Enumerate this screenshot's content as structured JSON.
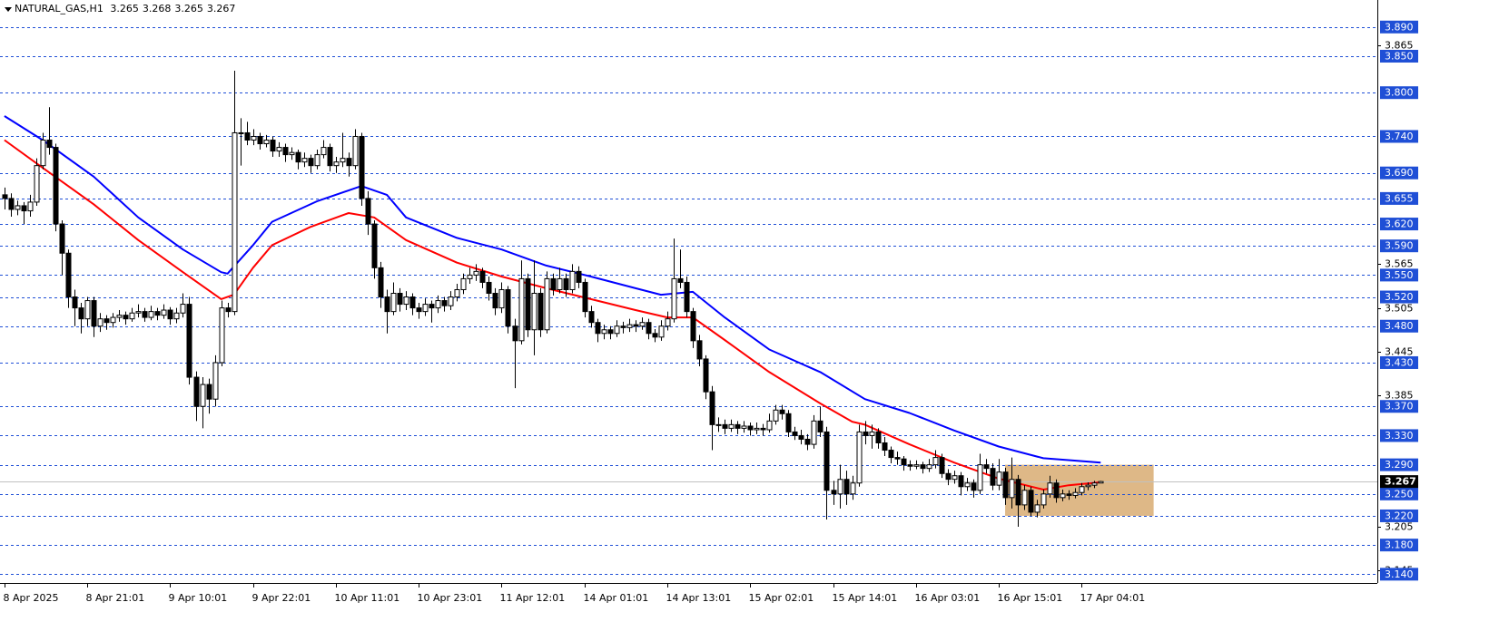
{
  "chart_data": {
    "type": "candlestick",
    "title": "NATURAL_GAS,H1",
    "xlim": [
      -0.7,
      215.4
    ],
    "ylim": [
      3.128,
      3.927
    ],
    "xticks": [
      {
        "value": 0,
        "label": "8 Apr 2025"
      },
      {
        "value": 13,
        "label": "8 Apr 21:01"
      },
      {
        "value": 26,
        "label": "9 Apr 10:01"
      },
      {
        "value": 39,
        "label": "9 Apr 22:01"
      },
      {
        "value": 52,
        "label": "10 Apr 11:01"
      },
      {
        "value": 65,
        "label": "10 Apr 23:01"
      },
      {
        "value": 78,
        "label": "11 Apr 12:01"
      },
      {
        "value": 91,
        "label": "14 Apr 01:01"
      },
      {
        "value": 104,
        "label": "14 Apr 13:01"
      },
      {
        "value": 117,
        "label": "15 Apr 02:01"
      },
      {
        "value": 130,
        "label": "15 Apr 14:01"
      },
      {
        "value": 143,
        "label": "16 Apr 03:01"
      },
      {
        "value": 156,
        "label": "16 Apr 15:01"
      },
      {
        "value": 169,
        "label": "17 Apr 04:01"
      }
    ],
    "yticks": [
      3.865,
      3.565,
      3.505,
      3.445,
      3.385,
      3.205,
      3.145
    ],
    "levels": [
      {
        "value": 3.89,
        "label": "3.890"
      },
      {
        "value": 3.85,
        "label": "3.850"
      },
      {
        "value": 3.8,
        "label": "3.800"
      },
      {
        "value": 3.74,
        "label": "3.740"
      },
      {
        "value": 3.69,
        "label": "3.690"
      },
      {
        "value": 3.655,
        "label": "3.655"
      },
      {
        "value": 3.62,
        "label": "3.620"
      },
      {
        "value": 3.59,
        "label": "3.590"
      },
      {
        "value": 3.55,
        "label": "3.550"
      },
      {
        "value": 3.52,
        "label": "3.520"
      },
      {
        "value": 3.48,
        "label": "3.480"
      },
      {
        "value": 3.43,
        "label": "3.430"
      },
      {
        "value": 3.37,
        "label": "3.370"
      },
      {
        "value": 3.33,
        "label": "3.330"
      },
      {
        "value": 3.29,
        "label": "3.290"
      },
      {
        "value": 3.25,
        "label": "3.250"
      },
      {
        "value": 3.22,
        "label": "3.220"
      },
      {
        "value": 3.18,
        "label": "3.180"
      },
      {
        "value": 3.14,
        "label": "3.140"
      }
    ],
    "level_color": "#1f4fd6",
    "zone": {
      "color": "#deb887",
      "xlim": [
        157,
        180.3
      ],
      "ylim": [
        3.22,
        3.29
      ]
    },
    "candles": [
      [
        3.66,
        3.67,
        3.64,
        3.655
      ],
      [
        3.655,
        3.662,
        3.63,
        3.64
      ],
      [
        3.64,
        3.652,
        3.632,
        3.645
      ],
      [
        3.645,
        3.65,
        3.62,
        3.638
      ],
      [
        3.638,
        3.66,
        3.63,
        3.65
      ],
      [
        3.65,
        3.71,
        3.645,
        3.7
      ],
      [
        3.7,
        3.745,
        3.695,
        3.735
      ],
      [
        3.735,
        3.78,
        3.715,
        3.725
      ],
      [
        3.725,
        3.73,
        3.61,
        3.62
      ],
      [
        3.62,
        3.625,
        3.55,
        3.58
      ],
      [
        3.58,
        3.585,
        3.505,
        3.52
      ],
      [
        3.52,
        3.53,
        3.48,
        3.505
      ],
      [
        3.505,
        3.512,
        3.47,
        3.49
      ],
      [
        3.49,
        3.52,
        3.48,
        3.515
      ],
      [
        3.515,
        3.52,
        3.465,
        3.48
      ],
      [
        3.48,
        3.498,
        3.472,
        3.49
      ],
      [
        3.49,
        3.495,
        3.475,
        3.485
      ],
      [
        3.485,
        3.498,
        3.478,
        3.492
      ],
      [
        3.492,
        3.502,
        3.486,
        3.495
      ],
      [
        3.495,
        3.5,
        3.482,
        3.49
      ],
      [
        3.49,
        3.505,
        3.486,
        3.498
      ],
      [
        3.498,
        3.51,
        3.492,
        3.5
      ],
      [
        3.5,
        3.505,
        3.486,
        3.492
      ],
      [
        3.492,
        3.508,
        3.488,
        3.5
      ],
      [
        3.5,
        3.505,
        3.488,
        3.495
      ],
      [
        3.495,
        3.51,
        3.49,
        3.502
      ],
      [
        3.502,
        3.506,
        3.482,
        3.49
      ],
      [
        3.49,
        3.505,
        3.484,
        3.498
      ],
      [
        3.498,
        3.525,
        3.492,
        3.51
      ],
      [
        3.51,
        3.52,
        3.4,
        3.41
      ],
      [
        3.41,
        3.418,
        3.35,
        3.37
      ],
      [
        3.37,
        3.41,
        3.34,
        3.4
      ],
      [
        3.4,
        3.408,
        3.36,
        3.38
      ],
      [
        3.38,
        3.44,
        3.37,
        3.43
      ],
      [
        3.43,
        3.515,
        3.425,
        3.505
      ],
      [
        3.505,
        3.512,
        3.492,
        3.5
      ],
      [
        3.5,
        3.83,
        3.495,
        3.745
      ],
      [
        3.745,
        3.765,
        3.7,
        3.745
      ],
      [
        3.745,
        3.76,
        3.728,
        3.735
      ],
      [
        3.735,
        3.75,
        3.728,
        3.74
      ],
      [
        3.74,
        3.745,
        3.722,
        3.73
      ],
      [
        3.73,
        3.742,
        3.725,
        3.735
      ],
      [
        3.735,
        3.74,
        3.712,
        3.72
      ],
      [
        3.72,
        3.732,
        3.712,
        3.725
      ],
      [
        3.725,
        3.73,
        3.705,
        3.715
      ],
      [
        3.715,
        3.725,
        3.708,
        3.718
      ],
      [
        3.718,
        3.722,
        3.695,
        3.705
      ],
      [
        3.705,
        3.718,
        3.698,
        3.71
      ],
      [
        3.71,
        3.715,
        3.69,
        3.7
      ],
      [
        3.7,
        3.722,
        3.695,
        3.715
      ],
      [
        3.715,
        3.735,
        3.71,
        3.725
      ],
      [
        3.725,
        3.73,
        3.692,
        3.7
      ],
      [
        3.7,
        3.712,
        3.69,
        3.705
      ],
      [
        3.705,
        3.745,
        3.698,
        3.71
      ],
      [
        3.71,
        3.718,
        3.685,
        3.7
      ],
      [
        3.7,
        3.75,
        3.695,
        3.74
      ],
      [
        3.74,
        3.745,
        3.645,
        3.655
      ],
      [
        3.655,
        3.665,
        3.605,
        3.62
      ],
      [
        3.62,
        3.625,
        3.545,
        3.56
      ],
      [
        3.56,
        3.568,
        3.505,
        3.52
      ],
      [
        3.52,
        3.53,
        3.47,
        3.5
      ],
      [
        3.5,
        3.54,
        3.495,
        3.525
      ],
      [
        3.525,
        3.532,
        3.5,
        3.51
      ],
      [
        3.51,
        3.528,
        3.502,
        3.52
      ],
      [
        3.52,
        3.525,
        3.495,
        3.505
      ],
      [
        3.505,
        3.512,
        3.49,
        3.5
      ],
      [
        3.5,
        3.518,
        3.494,
        3.51
      ],
      [
        3.51,
        3.515,
        3.485,
        3.505
      ],
      [
        3.505,
        3.522,
        3.498,
        3.515
      ],
      [
        3.515,
        3.52,
        3.5,
        3.508
      ],
      [
        3.508,
        3.528,
        3.502,
        3.52
      ],
      [
        3.52,
        3.538,
        3.514,
        3.53
      ],
      [
        3.53,
        3.552,
        3.524,
        3.545
      ],
      [
        3.545,
        3.56,
        3.538,
        3.55
      ],
      [
        3.55,
        3.565,
        3.542,
        3.555
      ],
      [
        3.555,
        3.56,
        3.532,
        3.54
      ],
      [
        3.54,
        3.548,
        3.515,
        3.525
      ],
      [
        3.525,
        3.532,
        3.495,
        3.505
      ],
      [
        3.505,
        3.54,
        3.498,
        3.53
      ],
      [
        3.53,
        3.535,
        3.47,
        3.48
      ],
      [
        3.48,
        3.49,
        3.395,
        3.46
      ],
      [
        3.46,
        3.57,
        3.455,
        3.545
      ],
      [
        3.545,
        3.552,
        3.465,
        3.475
      ],
      [
        3.475,
        3.57,
        3.44,
        3.525
      ],
      [
        3.525,
        3.532,
        3.465,
        3.475
      ],
      [
        3.475,
        3.555,
        3.47,
        3.545
      ],
      [
        3.545,
        3.552,
        3.522,
        3.53
      ],
      [
        3.53,
        3.56,
        3.525,
        3.545
      ],
      [
        3.545,
        3.552,
        3.52,
        3.53
      ],
      [
        3.53,
        3.565,
        3.525,
        3.555
      ],
      [
        3.555,
        3.562,
        3.532,
        3.54
      ],
      [
        3.54,
        3.545,
        3.492,
        3.5
      ],
      [
        3.5,
        3.508,
        3.478,
        3.485
      ],
      [
        3.485,
        3.49,
        3.458,
        3.47
      ],
      [
        3.47,
        3.482,
        3.462,
        3.475
      ],
      [
        3.475,
        3.48,
        3.462,
        3.47
      ],
      [
        3.47,
        3.488,
        3.465,
        3.48
      ],
      [
        3.48,
        3.486,
        3.47,
        3.478
      ],
      [
        3.478,
        3.49,
        3.472,
        3.482
      ],
      [
        3.482,
        3.488,
        3.472,
        3.48
      ],
      [
        3.48,
        3.492,
        3.475,
        3.485
      ],
      [
        3.485,
        3.49,
        3.462,
        3.47
      ],
      [
        3.47,
        3.476,
        3.458,
        3.465
      ],
      [
        3.465,
        3.488,
        3.46,
        3.48
      ],
      [
        3.48,
        3.5,
        3.474,
        3.49
      ],
      [
        3.49,
        3.6,
        3.485,
        3.545
      ],
      [
        3.545,
        3.585,
        3.532,
        3.54
      ],
      [
        3.54,
        3.548,
        3.492,
        3.5
      ],
      [
        3.5,
        3.505,
        3.45,
        3.46
      ],
      [
        3.46,
        3.468,
        3.425,
        3.435
      ],
      [
        3.435,
        3.44,
        3.38,
        3.39
      ],
      [
        3.39,
        3.398,
        3.31,
        3.345
      ],
      [
        3.345,
        3.355,
        3.335,
        3.345
      ],
      [
        3.345,
        3.352,
        3.332,
        3.34
      ],
      [
        3.34,
        3.352,
        3.335,
        3.345
      ],
      [
        3.345,
        3.35,
        3.332,
        3.34
      ],
      [
        3.34,
        3.35,
        3.334,
        3.343
      ],
      [
        3.343,
        3.348,
        3.33,
        3.338
      ],
      [
        3.338,
        3.348,
        3.332,
        3.34
      ],
      [
        3.34,
        3.346,
        3.33,
        3.338
      ],
      [
        3.338,
        3.36,
        3.334,
        3.35
      ],
      [
        3.35,
        3.372,
        3.345,
        3.365
      ],
      [
        3.365,
        3.372,
        3.352,
        3.36
      ],
      [
        3.36,
        3.365,
        3.328,
        3.335
      ],
      [
        3.335,
        3.342,
        3.324,
        3.33
      ],
      [
        3.33,
        3.338,
        3.318,
        3.325
      ],
      [
        3.325,
        3.332,
        3.31,
        3.318
      ],
      [
        3.318,
        3.358,
        3.312,
        3.35
      ],
      [
        3.35,
        3.37,
        3.328,
        3.335
      ],
      [
        3.335,
        3.342,
        3.215,
        3.255
      ],
      [
        3.255,
        3.268,
        3.235,
        3.25
      ],
      [
        3.25,
        3.29,
        3.23,
        3.27
      ],
      [
        3.27,
        3.282,
        3.235,
        3.25
      ],
      [
        3.25,
        3.275,
        3.242,
        3.265
      ],
      [
        3.265,
        3.345,
        3.26,
        3.335
      ],
      [
        3.335,
        3.35,
        3.318,
        3.33
      ],
      [
        3.33,
        3.345,
        3.312,
        3.335
      ],
      [
        3.335,
        3.34,
        3.312,
        3.32
      ],
      [
        3.32,
        3.328,
        3.302,
        3.31
      ],
      [
        3.31,
        3.315,
        3.292,
        3.3
      ],
      [
        3.3,
        3.308,
        3.29,
        3.298
      ],
      [
        3.298,
        3.302,
        3.282,
        3.29
      ],
      [
        3.29,
        3.296,
        3.282,
        3.288
      ],
      [
        3.288,
        3.296,
        3.284,
        3.29
      ],
      [
        3.29,
        3.294,
        3.278,
        3.285
      ],
      [
        3.285,
        3.298,
        3.28,
        3.29
      ],
      [
        3.29,
        3.31,
        3.285,
        3.3
      ],
      [
        3.3,
        3.305,
        3.272,
        3.278
      ],
      [
        3.278,
        3.284,
        3.262,
        3.27
      ],
      [
        3.27,
        3.282,
        3.264,
        3.275
      ],
      [
        3.275,
        3.28,
        3.248,
        3.26
      ],
      [
        3.26,
        3.272,
        3.254,
        3.265
      ],
      [
        3.265,
        3.27,
        3.245,
        3.255
      ],
      [
        3.255,
        3.305,
        3.25,
        3.29
      ],
      [
        3.29,
        3.298,
        3.278,
        3.285
      ],
      [
        3.285,
        3.292,
        3.255,
        3.262
      ],
      [
        3.262,
        3.298,
        3.255,
        3.28
      ],
      [
        3.28,
        3.286,
        3.235,
        3.245
      ],
      [
        3.245,
        3.3,
        3.23,
        3.27
      ],
      [
        3.27,
        3.276,
        3.205,
        3.235
      ],
      [
        3.235,
        3.262,
        3.228,
        3.255
      ],
      [
        3.255,
        3.26,
        3.22,
        3.225
      ],
      [
        3.225,
        3.242,
        3.218,
        3.235
      ],
      [
        3.235,
        3.256,
        3.23,
        3.25
      ],
      [
        3.25,
        3.275,
        3.245,
        3.265
      ],
      [
        3.265,
        3.27,
        3.238,
        3.245
      ],
      [
        3.245,
        3.256,
        3.24,
        3.25
      ],
      [
        3.25,
        3.255,
        3.242,
        3.248
      ],
      [
        3.248,
        3.258,
        3.244,
        3.252
      ],
      [
        3.252,
        3.265,
        3.248,
        3.26
      ],
      [
        3.26,
        3.266,
        3.255,
        3.262
      ],
      [
        3.262,
        3.268,
        3.258,
        3.265
      ],
      [
        3.265,
        3.268,
        3.265,
        3.267
      ]
    ],
    "series": [
      {
        "color": "#ff0000",
        "x": [
          0,
          6,
          14,
          21,
          28,
          34,
          36,
          39,
          42,
          48,
          54,
          58,
          63,
          71,
          78,
          85,
          92,
          99,
          104,
          108,
          113,
          120,
          128,
          133,
          135,
          142,
          149,
          156,
          163,
          167,
          172
        ],
        "values": [
          3.735,
          3.697,
          3.647,
          3.598,
          3.554,
          3.517,
          3.523,
          3.56,
          3.591,
          3.616,
          3.635,
          3.629,
          3.598,
          3.567,
          3.548,
          3.532,
          3.517,
          3.502,
          3.492,
          3.492,
          3.461,
          3.417,
          3.374,
          3.349,
          3.345,
          3.318,
          3.293,
          3.271,
          3.256,
          3.262,
          3.266
        ]
      },
      {
        "color": "#0000ff",
        "x": [
          0,
          6,
          14,
          21,
          28,
          34,
          35,
          39,
          42,
          49,
          56,
          60,
          63,
          71,
          78,
          85,
          92,
          99,
          103,
          108,
          113,
          120,
          128,
          135,
          142,
          149,
          156,
          163,
          172
        ],
        "values": [
          3.768,
          3.735,
          3.685,
          3.629,
          3.585,
          3.554,
          3.552,
          3.591,
          3.623,
          3.651,
          3.672,
          3.66,
          3.629,
          3.601,
          3.585,
          3.563,
          3.548,
          3.532,
          3.523,
          3.527,
          3.492,
          3.448,
          3.417,
          3.38,
          3.361,
          3.337,
          3.315,
          3.299,
          3.293
        ]
      }
    ]
  }
}
